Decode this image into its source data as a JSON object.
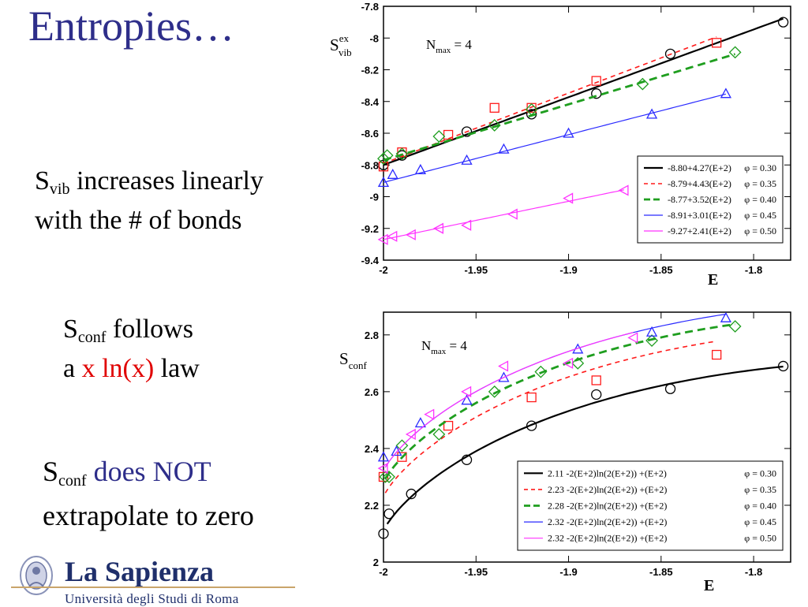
{
  "slide": {
    "title": "Entropies…",
    "bullets": [
      {
        "pre": "S",
        "sub": "vib",
        "text": " increases linearly",
        "line2": "with the # of bonds"
      },
      {
        "pre": "S",
        "sub": "conf",
        "text": " follows",
        "line2a": "a ",
        "line2red": "x ln(x)",
        "line2b": " law"
      },
      {
        "pre": "S",
        "sub": "conf",
        "text_blue": " does NOT",
        "line2": "extrapolate to zero"
      }
    ]
  },
  "logo": {
    "name": "La Sapienza",
    "subtitle": "Università degli Studi di Roma"
  },
  "colors": {
    "black": "#000000",
    "red": "#ff1a1a",
    "green": "#1f9e1f",
    "blue": "#2a2aff",
    "magenta": "#ff33ff",
    "title": "#2e2e8a"
  },
  "chart_data": [
    {
      "type": "line",
      "annotation": {
        "main": "N",
        "sub": "max",
        "rest": " = 4"
      },
      "ylabel": {
        "main": "S",
        "sup": "ex",
        "sub": "vib"
      },
      "xlabel": "E",
      "xlim": [
        -2.0,
        -1.78
      ],
      "ylim": [
        -9.4,
        -7.8
      ],
      "xticks": [
        -2,
        -1.95,
        -1.9,
        -1.85,
        -1.8
      ],
      "xtick_labels": [
        "-2",
        "-1.95",
        "-1.9",
        "-1.85",
        "-1.8"
      ],
      "yticks": [
        -9.4,
        -9.2,
        -9,
        -8.8,
        -8.6,
        -8.4,
        -8.2,
        -8,
        -7.8
      ],
      "ytick_labels": [
        "-9.4",
        "-9.2",
        "-9",
        "-8.8",
        "-8.6",
        "-8.4",
        "-8.2",
        "-8",
        "-7.8"
      ],
      "legend_position": "bottom-right",
      "series": [
        {
          "name": "-8.80+4.27(E+2)",
          "phi": "φ = 0.30",
          "color": "#000000",
          "dash": "",
          "width": 2.2,
          "marker": "circle",
          "fit": {
            "a": -8.8,
            "b": 4.27,
            "x": [
              -2.0,
              -1.784
            ]
          },
          "x": [
            -2.0,
            -1.99,
            -1.955,
            -1.92,
            -1.885,
            -1.845,
            -1.784
          ],
          "y": [
            -8.8,
            -8.74,
            -8.59,
            -8.48,
            -8.35,
            -8.1,
            -7.9
          ]
        },
        {
          "name": "-8.79+4.43(E+2)",
          "phi": "φ = 0.35",
          "color": "#ff1a1a",
          "dash": "6,5",
          "width": 1.6,
          "marker": "square",
          "fit": {
            "a": -8.79,
            "b": 4.43,
            "x": [
              -2.0,
              -1.82
            ]
          },
          "x": [
            -2.0,
            -1.99,
            -1.965,
            -1.94,
            -1.92,
            -1.885,
            -1.82
          ],
          "y": [
            -8.81,
            -8.72,
            -8.61,
            -8.44,
            -8.44,
            -8.27,
            -8.03
          ]
        },
        {
          "name": "-8.77+3.52(E+2)",
          "phi": "φ = 0.40",
          "color": "#1f9e1f",
          "dash": "10,6",
          "width": 2.8,
          "marker": "diamond",
          "fit": {
            "a": -8.77,
            "b": 3.52,
            "x": [
              -2.0,
              -1.81
            ]
          },
          "x": [
            -2.0,
            -1.998,
            -1.99,
            -1.97,
            -1.94,
            -1.92,
            -1.86,
            -1.81
          ],
          "y": [
            -8.76,
            -8.74,
            -8.73,
            -8.62,
            -8.55,
            -8.45,
            -8.29,
            -8.09
          ]
        },
        {
          "name": "-8.91+3.01(E+2)",
          "phi": "φ = 0.45",
          "color": "#2a2aff",
          "dash": "",
          "width": 1.2,
          "marker": "triangle-up",
          "fit": {
            "a": -8.91,
            "b": 3.01,
            "x": [
              -2.0,
              -1.815
            ]
          },
          "x": [
            -2.0,
            -1.995,
            -1.98,
            -1.955,
            -1.935,
            -1.9,
            -1.855,
            -1.815
          ],
          "y": [
            -8.91,
            -8.86,
            -8.83,
            -8.77,
            -8.7,
            -8.6,
            -8.48,
            -8.35
          ]
        },
        {
          "name": "-9.27+2.41(E+2)",
          "phi": "φ = 0.50",
          "color": "#ff33ff",
          "dash": "",
          "width": 1.2,
          "marker": "triangle-left",
          "fit": {
            "a": -9.27,
            "b": 2.41,
            "x": [
              -2.0,
              -1.87
            ]
          },
          "x": [
            -2.0,
            -1.995,
            -1.985,
            -1.97,
            -1.955,
            -1.93,
            -1.9,
            -1.87
          ],
          "y": [
            -9.27,
            -9.25,
            -9.24,
            -9.2,
            -9.18,
            -9.11,
            -9.01,
            -8.96
          ]
        }
      ]
    },
    {
      "type": "line",
      "annotation": {
        "main": "N",
        "sub": "max",
        "rest": " = 4"
      },
      "ylabel": {
        "main": "S",
        "sub": "conf"
      },
      "xlabel": "E",
      "xlim": [
        -2.0,
        -1.78
      ],
      "ylim": [
        2.0,
        2.88
      ],
      "xticks": [
        -2,
        -1.95,
        -1.9,
        -1.85,
        -1.8
      ],
      "xtick_labels": [
        "-2",
        "-1.95",
        "-1.9",
        "-1.85",
        "-1.8"
      ],
      "yticks": [
        2,
        2.2,
        2.4,
        2.6,
        2.8
      ],
      "ytick_labels": [
        "2",
        "2.2",
        "2.4",
        "2.6",
        "2.8"
      ],
      "legend_position": "bottom-right",
      "series": [
        {
          "name": "2.11 -2(E+2)ln(2(E+2)) +(E+2)",
          "phi": "φ = 0.30",
          "color": "#000000",
          "dash": "",
          "width": 2.2,
          "marker": "circle",
          "fit": {
            "c": 2.11,
            "x": [
              -1.998,
              -1.784
            ]
          },
          "x": [
            -2.0,
            -1.997,
            -1.985,
            -1.955,
            -1.92,
            -1.885,
            -1.845,
            -1.784
          ],
          "y": [
            2.1,
            2.17,
            2.24,
            2.36,
            2.48,
            2.59,
            2.61,
            2.69
          ]
        },
        {
          "name": "2.23 -2(E+2)ln(2(E+2)) +(E+2)",
          "phi": "φ = 0.35",
          "color": "#ff1a1a",
          "dash": "6,5",
          "width": 1.6,
          "marker": "square",
          "fit": {
            "c": 2.23,
            "x": [
              -1.999,
              -1.82
            ]
          },
          "x": [
            -2.0,
            -1.99,
            -1.965,
            -1.92,
            -1.885,
            -1.82
          ],
          "y": [
            2.3,
            2.37,
            2.48,
            2.58,
            2.64,
            2.73
          ]
        },
        {
          "name": "2.28 -2(E+2)ln(2(E+2)) +(E+2)",
          "phi": "φ = 0.40",
          "color": "#1f9e1f",
          "dash": "10,6",
          "width": 2.8,
          "marker": "diamond",
          "fit": {
            "c": 2.28,
            "x": [
              -1.999,
              -1.81
            ]
          },
          "x": [
            -1.999,
            -1.997,
            -1.99,
            -1.97,
            -1.94,
            -1.915,
            -1.895,
            -1.855,
            -1.81
          ],
          "y": [
            2.3,
            2.3,
            2.41,
            2.45,
            2.6,
            2.67,
            2.7,
            2.78,
            2.83
          ]
        },
        {
          "name": "2.32 -2(E+2)ln(2(E+2)) +(E+2)",
          "phi": "φ = 0.45",
          "color": "#2a2aff",
          "dash": "",
          "width": 1.2,
          "marker": "triangle-up",
          "fit": {
            "c": 2.32,
            "x": [
              -1.999,
              -1.815
            ]
          },
          "x": [
            -2.0,
            -1.993,
            -1.98,
            -1.955,
            -1.935,
            -1.895,
            -1.855,
            -1.815
          ],
          "y": [
            2.37,
            2.39,
            2.49,
            2.57,
            2.65,
            2.75,
            2.81,
            2.86
          ]
        },
        {
          "name": "2.32 -2(E+2)ln(2(E+2)) +(E+2)",
          "phi": "φ = 0.50",
          "color": "#ff33ff",
          "dash": "",
          "width": 1.2,
          "marker": "triangle-left",
          "fit": {
            "c": 2.32,
            "x": [
              -1.999,
              -1.865
            ]
          },
          "x": [
            -2.0,
            -1.985,
            -1.975,
            -1.955,
            -1.935,
            -1.9,
            -1.865
          ],
          "y": [
            2.33,
            2.45,
            2.52,
            2.6,
            2.69,
            2.7,
            2.79
          ]
        }
      ]
    }
  ]
}
